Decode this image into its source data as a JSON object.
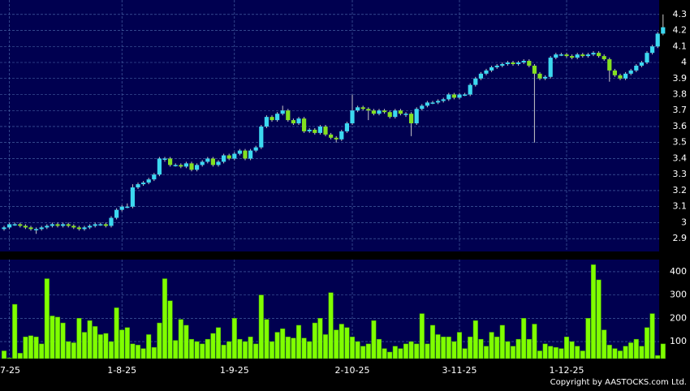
{
  "chart_data": [
    {
      "type": "candlestick",
      "up_color": "#3cd8f0",
      "down_color": "#84e020",
      "background": "#000050",
      "grid": true,
      "categories": [
        null,
        "7-25",
        null,
        null,
        null,
        null,
        null,
        null,
        null,
        null,
        null,
        null,
        null,
        null,
        null,
        null,
        null,
        null,
        null,
        null,
        null,
        null,
        "1-8-25",
        null,
        null,
        null,
        null,
        null,
        null,
        null,
        null,
        null,
        null,
        null,
        null,
        null,
        null,
        null,
        null,
        null,
        null,
        null,
        null,
        "1-9-25",
        null,
        null,
        null,
        null,
        null,
        null,
        null,
        null,
        null,
        null,
        null,
        null,
        null,
        null,
        null,
        null,
        null,
        null,
        null,
        null,
        null,
        "2-10-25",
        null,
        null,
        null,
        null,
        null,
        null,
        null,
        null,
        null,
        null,
        null,
        null,
        null,
        null,
        null,
        null,
        null,
        null,
        null,
        "3-11-25",
        null,
        null,
        null,
        null,
        null,
        null,
        null,
        null,
        null,
        null,
        null,
        null,
        null,
        null,
        null,
        null,
        null,
        null,
        null,
        "1-12-25",
        null,
        null,
        null,
        null,
        null,
        null,
        null,
        null,
        null,
        null,
        null,
        null,
        null,
        null,
        null,
        null,
        null,
        null
      ],
      "open": [
        2.96,
        2.97,
        2.99,
        2.99,
        2.98,
        2.97,
        2.96,
        2.96,
        2.97,
        2.98,
        2.99,
        2.98,
        2.99,
        2.98,
        2.97,
        2.96,
        2.97,
        2.98,
        2.99,
        2.99,
        2.98,
        3.03,
        3.08,
        3.1,
        3.1,
        3.22,
        3.24,
        3.25,
        3.27,
        3.3,
        3.4,
        3.4,
        3.36,
        3.36,
        3.35,
        3.37,
        3.33,
        3.36,
        3.38,
        3.4,
        3.36,
        3.38,
        3.42,
        3.4,
        3.43,
        3.45,
        3.4,
        3.45,
        3.47,
        3.6,
        3.66,
        3.64,
        3.68,
        3.7,
        3.64,
        3.62,
        3.65,
        3.57,
        3.58,
        3.56,
        3.6,
        3.55,
        3.53,
        3.52,
        3.57,
        3.62,
        3.7,
        3.72,
        3.71,
        3.7,
        3.68,
        3.7,
        3.69,
        3.66,
        3.7,
        3.68,
        3.68,
        3.62,
        3.71,
        3.73,
        3.75,
        3.75,
        3.76,
        3.77,
        3.8,
        3.78,
        3.8,
        3.8,
        3.86,
        3.9,
        3.93,
        3.95,
        3.97,
        3.98,
        3.99,
        4.0,
        3.99,
        4.0,
        4.01,
        3.98,
        3.93,
        3.9,
        3.91,
        4.03,
        4.05,
        4.05,
        4.04,
        4.03,
        4.05,
        4.04,
        4.05,
        4.06,
        4.04,
        4.02,
        3.95,
        3.92,
        3.9,
        3.93,
        3.95,
        3.98,
        4.0,
        4.06,
        4.1,
        4.18
      ],
      "high": [
        2.98,
        3.0,
        3.0,
        3.0,
        2.99,
        2.98,
        2.97,
        2.98,
        2.99,
        3.0,
        3.0,
        3.0,
        3.0,
        2.99,
        2.98,
        2.98,
        2.99,
        3.0,
        3.0,
        3.0,
        3.04,
        3.09,
        3.11,
        3.12,
        3.24,
        3.25,
        3.26,
        3.28,
        3.31,
        3.41,
        3.41,
        3.41,
        3.37,
        3.37,
        3.38,
        3.38,
        3.37,
        3.39,
        3.41,
        3.41,
        3.39,
        3.43,
        3.43,
        3.44,
        3.46,
        3.46,
        3.46,
        3.48,
        3.61,
        3.67,
        3.67,
        3.69,
        3.73,
        3.71,
        3.65,
        3.66,
        3.66,
        3.59,
        3.59,
        3.61,
        3.61,
        3.56,
        3.54,
        3.58,
        3.63,
        3.8,
        3.73,
        3.73,
        3.72,
        3.71,
        3.71,
        3.71,
        3.7,
        3.71,
        3.71,
        3.69,
        3.69,
        3.72,
        3.74,
        3.76,
        3.76,
        3.77,
        3.78,
        3.81,
        3.81,
        3.81,
        3.81,
        3.87,
        3.91,
        3.94,
        3.96,
        3.98,
        3.99,
        4.0,
        4.01,
        4.01,
        4.01,
        4.02,
        4.02,
        3.99,
        3.94,
        3.92,
        4.04,
        4.06,
        4.06,
        4.06,
        4.05,
        4.06,
        4.06,
        4.06,
        4.07,
        4.07,
        4.05,
        4.03,
        3.96,
        3.93,
        3.94,
        3.96,
        3.99,
        4.01,
        4.07,
        4.11,
        4.19,
        4.3
      ],
      "low": [
        2.95,
        2.96,
        2.98,
        2.97,
        2.96,
        2.95,
        2.93,
        2.95,
        2.96,
        2.97,
        2.97,
        2.97,
        2.97,
        2.96,
        2.95,
        2.95,
        2.96,
        2.97,
        2.98,
        2.97,
        2.97,
        3.02,
        3.07,
        3.09,
        3.09,
        3.21,
        3.23,
        3.24,
        3.26,
        3.29,
        3.38,
        3.35,
        3.35,
        3.34,
        3.34,
        3.32,
        3.32,
        3.35,
        3.37,
        3.35,
        3.35,
        3.37,
        3.39,
        3.39,
        3.42,
        3.39,
        3.39,
        3.44,
        3.46,
        3.59,
        3.63,
        3.63,
        3.67,
        3.63,
        3.61,
        3.61,
        3.56,
        3.56,
        3.55,
        3.55,
        3.54,
        3.52,
        3.5,
        3.51,
        3.56,
        3.61,
        3.69,
        3.7,
        3.64,
        3.67,
        3.67,
        3.68,
        3.65,
        3.65,
        3.67,
        3.66,
        3.54,
        3.61,
        3.7,
        3.72,
        3.74,
        3.74,
        3.75,
        3.76,
        3.77,
        3.77,
        3.79,
        3.79,
        3.85,
        3.89,
        3.92,
        3.94,
        3.96,
        3.97,
        3.98,
        3.98,
        3.98,
        3.99,
        3.97,
        3.5,
        3.89,
        3.89,
        3.9,
        4.02,
        4.04,
        4.03,
        4.02,
        4.02,
        4.03,
        4.03,
        4.04,
        4.03,
        4.01,
        3.88,
        3.91,
        3.89,
        3.89,
        3.92,
        3.94,
        3.97,
        3.99,
        4.05,
        4.09,
        4.17
      ],
      "close": [
        2.97,
        2.99,
        2.99,
        2.98,
        2.97,
        2.96,
        2.96,
        2.97,
        2.98,
        2.99,
        2.98,
        2.99,
        2.98,
        2.97,
        2.96,
        2.97,
        2.98,
        2.99,
        2.99,
        2.98,
        3.03,
        3.08,
        3.1,
        3.1,
        3.22,
        3.24,
        3.25,
        3.27,
        3.3,
        3.4,
        3.4,
        3.36,
        3.36,
        3.35,
        3.37,
        3.33,
        3.36,
        3.38,
        3.4,
        3.36,
        3.38,
        3.42,
        3.4,
        3.43,
        3.45,
        3.4,
        3.45,
        3.47,
        3.6,
        3.66,
        3.64,
        3.68,
        3.7,
        3.64,
        3.62,
        3.65,
        3.57,
        3.58,
        3.56,
        3.6,
        3.55,
        3.53,
        3.52,
        3.57,
        3.62,
        3.7,
        3.72,
        3.71,
        3.7,
        3.68,
        3.7,
        3.69,
        3.66,
        3.7,
        3.68,
        3.68,
        3.62,
        3.71,
        3.73,
        3.75,
        3.75,
        3.76,
        3.77,
        3.8,
        3.78,
        3.8,
        3.8,
        3.86,
        3.9,
        3.93,
        3.95,
        3.97,
        3.98,
        3.99,
        4.0,
        3.99,
        4.0,
        4.01,
        3.98,
        3.93,
        3.9,
        3.91,
        4.03,
        4.05,
        4.05,
        4.04,
        4.03,
        4.05,
        4.04,
        4.05,
        4.06,
        4.04,
        4.02,
        3.95,
        3.92,
        3.9,
        3.93,
        3.95,
        3.98,
        4.0,
        4.06,
        4.1,
        4.18,
        4.22
      ],
      "ylim": [
        2.82,
        4.39
      ],
      "yticks": [
        2.9,
        3,
        3.1,
        3.2,
        3.3,
        3.4,
        3.5,
        3.6,
        3.7,
        3.8,
        3.9,
        4,
        4.1,
        4.2,
        4.3
      ]
    },
    {
      "type": "bar",
      "color": "#80ff00",
      "background": "#000050",
      "grid": true,
      "values": [
        60,
        30,
        260,
        50,
        120,
        125,
        120,
        90,
        370,
        210,
        205,
        180,
        100,
        95,
        200,
        140,
        190,
        165,
        130,
        135,
        100,
        245,
        150,
        160,
        90,
        85,
        70,
        130,
        75,
        180,
        370,
        275,
        105,
        195,
        170,
        110,
        100,
        90,
        110,
        135,
        160,
        85,
        100,
        200,
        110,
        100,
        120,
        90,
        300,
        195,
        100,
        140,
        155,
        120,
        115,
        170,
        115,
        100,
        180,
        200,
        130,
        310,
        150,
        175,
        160,
        120,
        100,
        80,
        90,
        190,
        110,
        70,
        55,
        80,
        70,
        90,
        100,
        90,
        220,
        90,
        170,
        130,
        120,
        120,
        100,
        140,
        70,
        120,
        190,
        110,
        80,
        140,
        120,
        170,
        100,
        80,
        110,
        200,
        110,
        175,
        60,
        90,
        80,
        75,
        70,
        120,
        100,
        80,
        60,
        200,
        430,
        365,
        150,
        85,
        70,
        60,
        80,
        95,
        110,
        80,
        160,
        220,
        40,
        90
      ],
      "ylim": [
        27,
        452
      ],
      "yticks": [
        100,
        200,
        300,
        400
      ]
    }
  ],
  "footer": "Copyright by AASTOCKS.com Ltd."
}
